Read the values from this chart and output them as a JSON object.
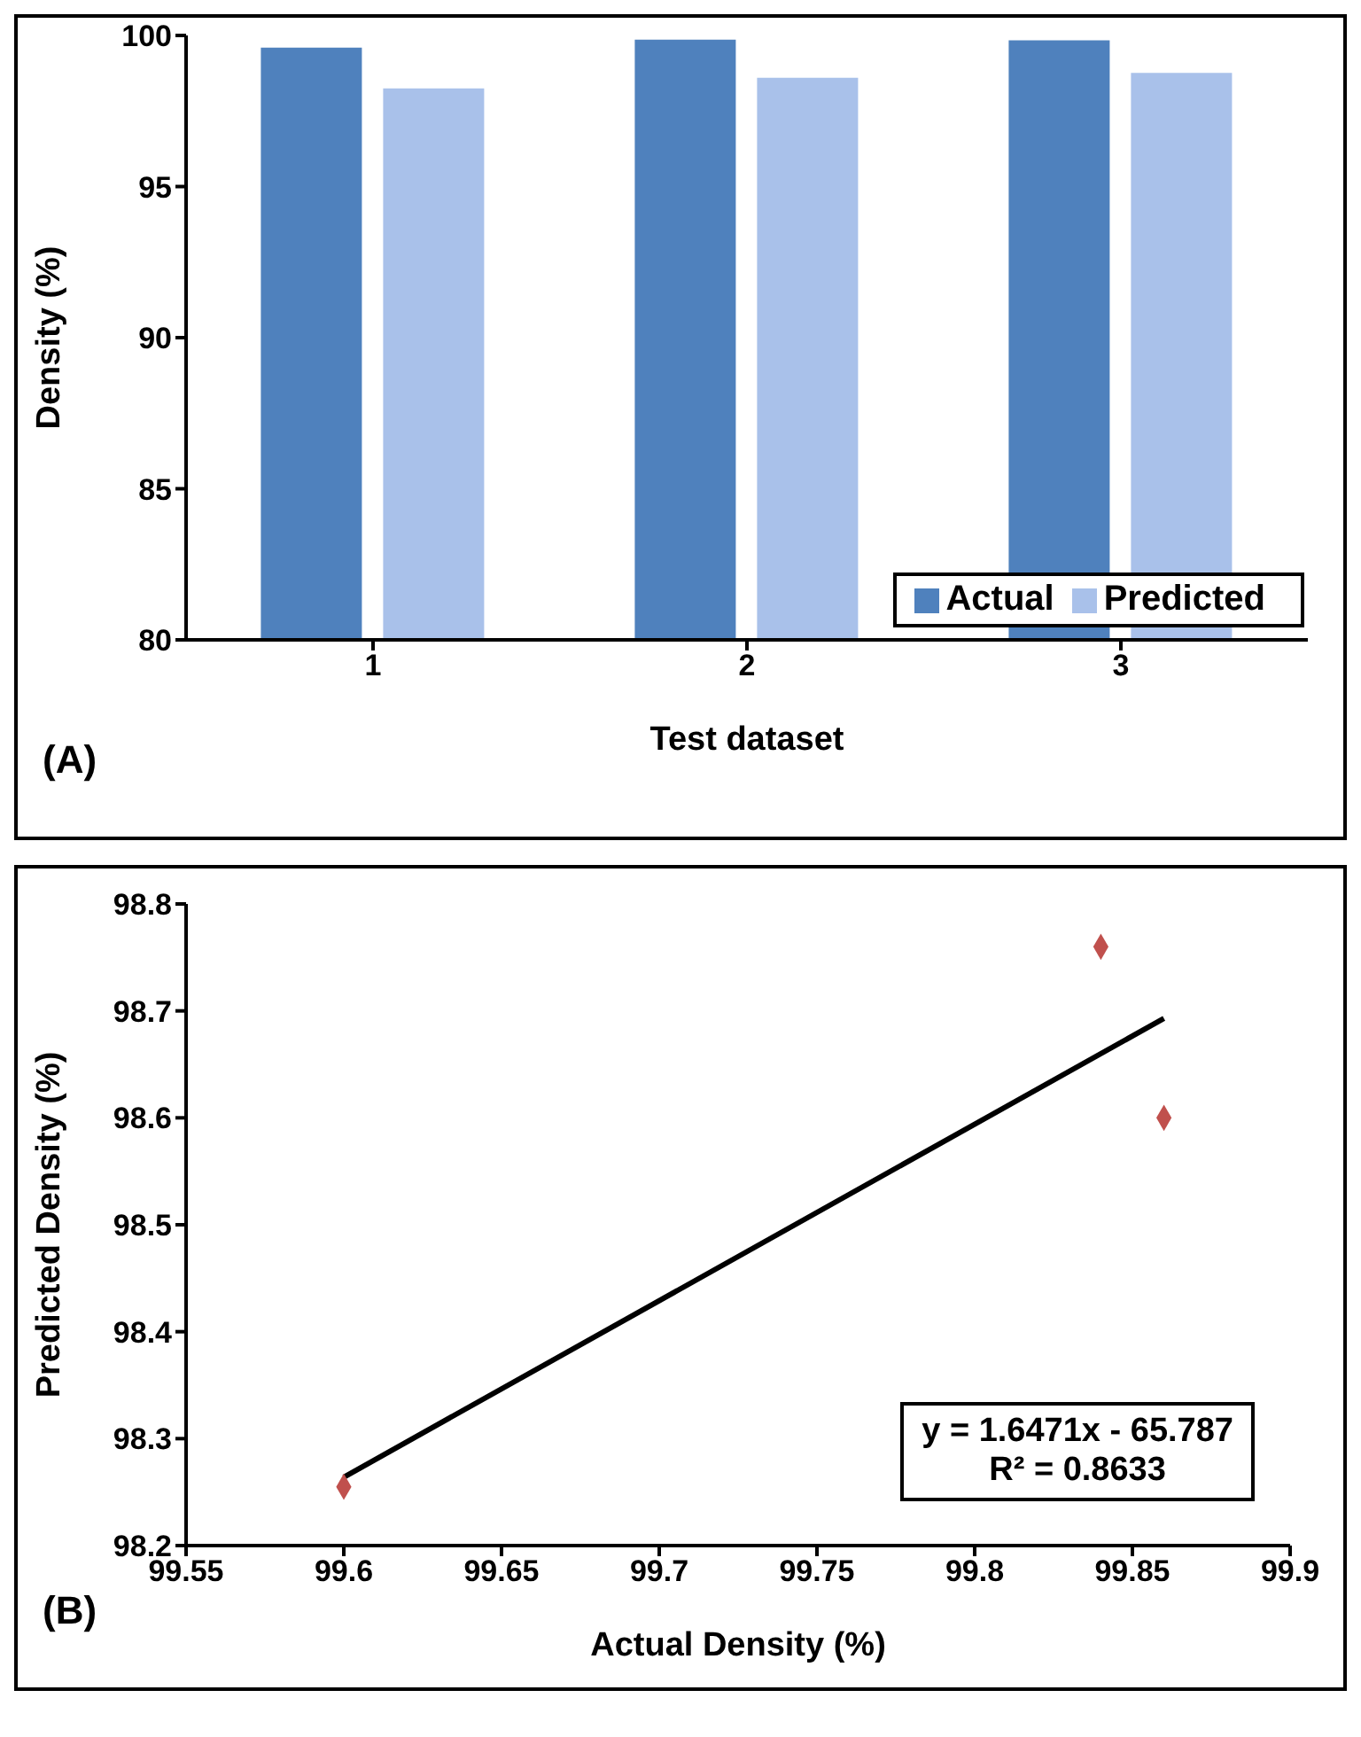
{
  "chart_data": [
    {
      "type": "bar",
      "xlabel": "Test dataset",
      "ylabel": "Density (%)",
      "categories": [
        "1",
        "2",
        "3"
      ],
      "series": [
        {
          "name": "Actual",
          "color": "#4f81bd",
          "values": [
            99.6,
            99.86,
            99.84
          ]
        },
        {
          "name": "Predicted",
          "color": "#a9c1ea",
          "values": [
            98.25,
            98.6,
            98.76
          ]
        }
      ],
      "ylim": [
        80,
        100
      ],
      "yticks": [
        80,
        85,
        90,
        95,
        100
      ],
      "legend": "bottom right",
      "annotations": [
        "(A)"
      ]
    },
    {
      "type": "scatter",
      "xlabel": "Actual Density (%)",
      "ylabel": "Predicted Density (%)",
      "series": [
        {
          "type": "scatter",
          "marker": "diamond",
          "color": "#c0504d",
          "x": [
            99.6,
            99.86,
            99.84
          ],
          "values": [
            98.255,
            98.6,
            98.76
          ]
        },
        {
          "type": "line",
          "color": "#000000",
          "x": [
            99.6,
            99.86
          ],
          "values": [
            98.264,
            98.693
          ]
        }
      ],
      "xlim": [
        99.55,
        99.9
      ],
      "xticks": [
        99.55,
        99.6,
        99.65,
        99.7,
        99.75,
        99.8,
        99.85,
        99.9
      ],
      "ylim": [
        98.2,
        98.8
      ],
      "yticks": [
        98.2,
        98.3,
        98.4,
        98.5,
        98.6,
        98.7,
        98.8
      ],
      "annotations": [
        "(B)",
        "y = 1.6471x - 65.787",
        "R² = 0.8633"
      ]
    }
  ]
}
